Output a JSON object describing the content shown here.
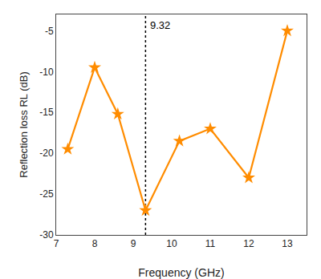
{
  "chart_data": {
    "type": "line",
    "x": [
      7.3,
      8.0,
      8.6,
      9.32,
      10.2,
      11.0,
      12.0,
      13.0
    ],
    "values": [
      -19.5,
      -9.5,
      -15.2,
      -27.0,
      -18.5,
      -17.0,
      -23.0,
      -5.0
    ],
    "color": "#FF8C00",
    "marker": "star",
    "xlabel": "Frequency (GHz)",
    "ylabel": "Reflection loss RL (dB)",
    "xlim": [
      7,
      13.5
    ],
    "ylim": [
      -30,
      -3
    ],
    "xticks": [
      7,
      8,
      9,
      10,
      11,
      12,
      13
    ],
    "yticks": [
      -30,
      -25,
      -20,
      -15,
      -10,
      -5
    ],
    "grid": false,
    "vline": {
      "x": 9.32,
      "label": "9.32",
      "line_style": "dotted",
      "color": "black"
    }
  }
}
